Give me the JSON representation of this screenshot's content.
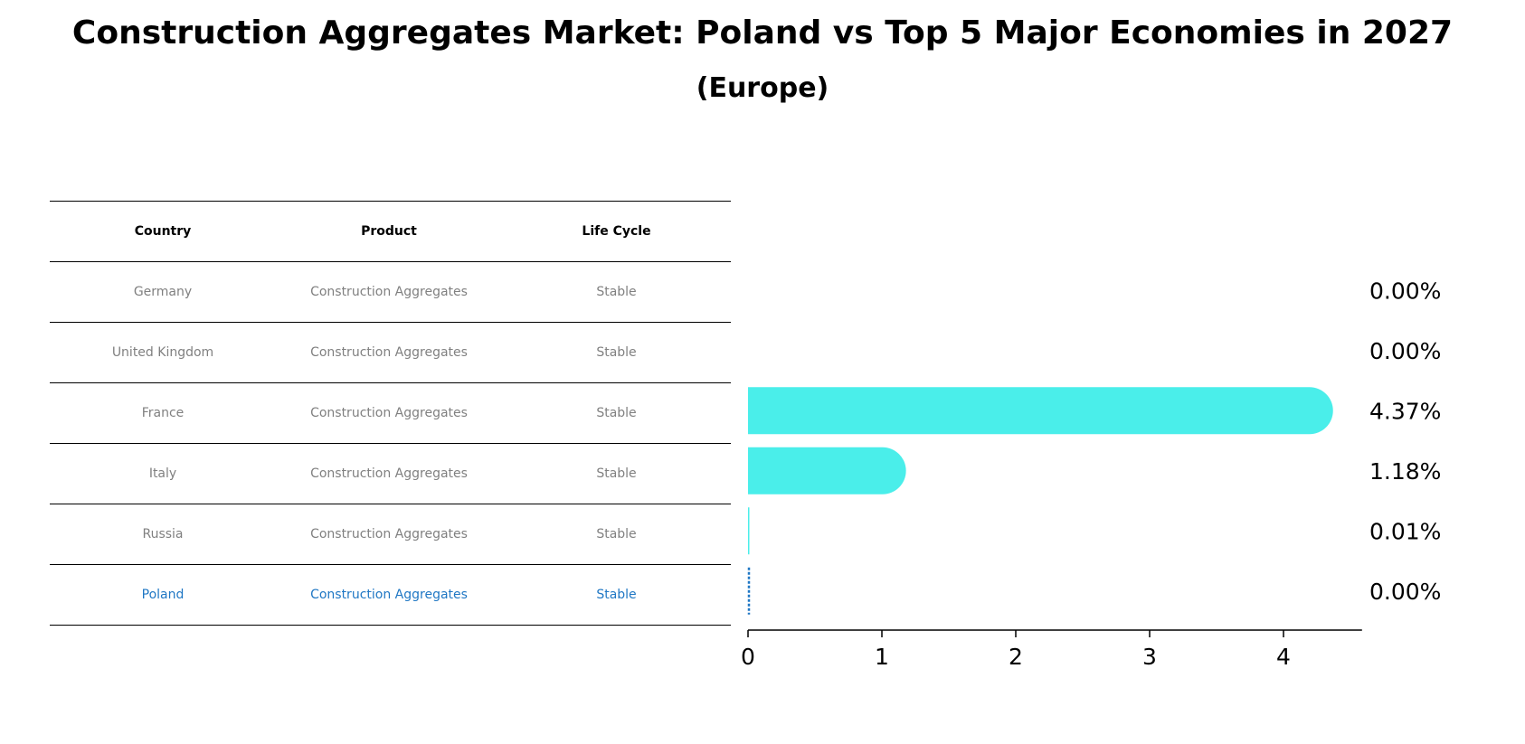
{
  "title": "Construction Aggregates Market: Poland vs Top 5 Major Economies in 2027",
  "subtitle": "(Europe)",
  "table": {
    "headers": [
      "Country",
      "Product",
      "Life Cycle"
    ],
    "rows": [
      {
        "country": "Germany",
        "product": "Construction Aggregates",
        "life_cycle": "Stable"
      },
      {
        "country": "United Kingdom",
        "product": "Construction Aggregates",
        "life_cycle": "Stable"
      },
      {
        "country": "France",
        "product": "Construction Aggregates",
        "life_cycle": "Stable"
      },
      {
        "country": "Italy",
        "product": "Construction Aggregates",
        "life_cycle": "Stable"
      },
      {
        "country": "Russia",
        "product": "Construction Aggregates",
        "life_cycle": "Stable"
      },
      {
        "country": "Poland",
        "product": "Construction Aggregates",
        "life_cycle": "Stable"
      }
    ],
    "highlight_row": "Poland",
    "highlight_color": "#1f77c4",
    "row_text_color": "#808080"
  },
  "chart_data": {
    "type": "bar",
    "orientation": "horizontal",
    "title": "Construction Aggregates Market: Poland vs Top 5 Major Economies in 2027",
    "subtitle": "(Europe)",
    "categories": [
      "Germany",
      "United Kingdom",
      "France",
      "Italy",
      "Russia",
      "Poland"
    ],
    "values": [
      0.0,
      0.0,
      4.37,
      1.18,
      0.01,
      0.0
    ],
    "value_labels": [
      "0.00%",
      "0.00%",
      "4.37%",
      "1.18%",
      "0.01%",
      "0.00%"
    ],
    "x_ticks": [
      0,
      1,
      2,
      3,
      4
    ],
    "xlim": [
      0,
      4.6
    ],
    "xlabel": "",
    "ylabel": "",
    "bar_color": "#4aeeea",
    "highlight_category": "Poland",
    "highlight_color": "#1f77c4"
  }
}
